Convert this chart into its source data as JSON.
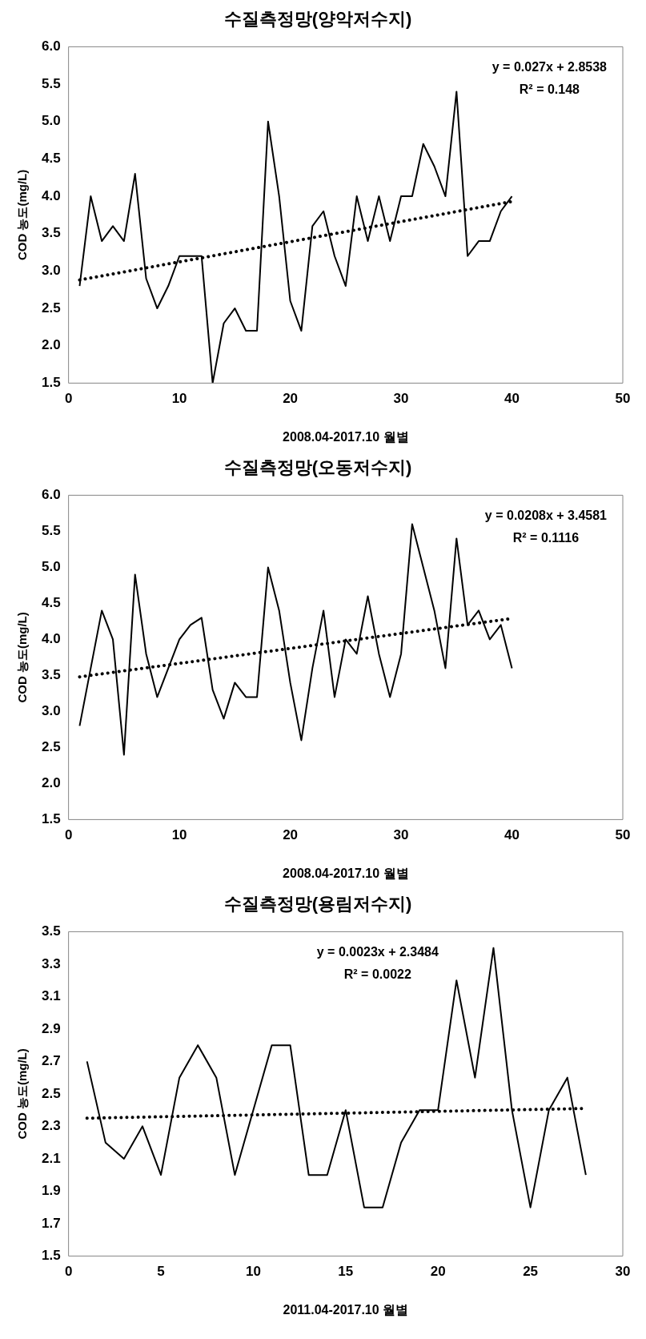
{
  "chart_data": [
    {
      "type": "line",
      "title": "수질측정망(양악저수지)",
      "xlabel": "2008.04-2017.10 월별",
      "ylabel": "COD 농도(mg/L)",
      "marker": "none",
      "x": [
        1,
        2,
        3,
        4,
        5,
        6,
        7,
        8,
        9,
        10,
        11,
        12,
        13,
        14,
        15,
        16,
        17,
        18,
        19,
        20,
        21,
        22,
        23,
        24,
        25,
        26,
        27,
        28,
        29,
        30,
        31,
        32,
        33,
        34,
        35,
        36,
        37,
        38,
        39,
        40
      ],
      "xlim": [
        0,
        50
      ],
      "xticks": [
        0,
        10,
        20,
        30,
        40,
        50
      ],
      "ylim": [
        1.5,
        6.0
      ],
      "yticks": [
        1.5,
        {
          "value": 2,
          "label": "2.0"
        },
        2.5,
        {
          "value": 3,
          "label": "3.0"
        },
        3.5,
        {
          "value": 4,
          "label": "4.0"
        },
        4.5,
        {
          "value": 5,
          "label": "5.0"
        },
        5.5,
        {
          "value": 6,
          "label": "6.0"
        }
      ],
      "series": [
        {
          "color": "#000000",
          "line_style": "solid",
          "values": [
            2.8,
            4.0,
            3.4,
            3.6,
            3.4,
            4.3,
            2.9,
            2.5,
            2.8,
            3.2,
            3.2,
            3.2,
            1.5,
            2.3,
            2.5,
            2.2,
            2.2,
            5.0,
            4.0,
            2.6,
            2.2,
            3.6,
            3.8,
            3.2,
            2.8,
            4.0,
            3.4,
            4.0,
            3.4,
            4.0,
            4.0,
            4.7,
            4.4,
            4.0,
            5.4,
            3.2,
            3.4,
            3.4,
            3.8,
            4.0
          ]
        },
        {
          "type": "line",
          "color": "#000000",
          "line_style": "dotted",
          "x": [
            1,
            40
          ],
          "values": [
            2.88,
            3.93
          ]
        }
      ],
      "annotations": [
        "y = 0.027x + 2.8538",
        "R² = 0.148"
      ]
    },
    {
      "type": "line",
      "title": "수질측정망(오동저수지)",
      "xlabel": "2008.04-2017.10 월별",
      "ylabel": "COD 농도(mg/L)",
      "marker": "none",
      "x": [
        1,
        2,
        3,
        4,
        5,
        6,
        7,
        8,
        9,
        10,
        11,
        12,
        13,
        14,
        15,
        16,
        17,
        18,
        19,
        20,
        21,
        22,
        23,
        24,
        25,
        26,
        27,
        28,
        29,
        30,
        31,
        32,
        33,
        34,
        35,
        36,
        37,
        38,
        39,
        40
      ],
      "xlim": [
        0,
        50
      ],
      "xticks": [
        0,
        10,
        20,
        30,
        40,
        50
      ],
      "ylim": [
        1.5,
        6.0
      ],
      "yticks": [
        1.5,
        {
          "value": 2,
          "label": "2.0"
        },
        2.5,
        {
          "value": 3,
          "label": "3.0"
        },
        3.5,
        {
          "value": 4,
          "label": "4.0"
        },
        4.5,
        {
          "value": 5,
          "label": "5.0"
        },
        5.5,
        {
          "value": 6,
          "label": "6.0"
        }
      ],
      "series": [
        {
          "color": "#000000",
          "line_style": "solid",
          "values": [
            2.8,
            3.6,
            4.4,
            4.0,
            2.4,
            4.9,
            3.8,
            3.2,
            3.6,
            4.0,
            4.2,
            4.3,
            3.3,
            2.9,
            3.4,
            3.2,
            3.2,
            5.0,
            4.4,
            3.4,
            2.6,
            3.6,
            4.4,
            3.2,
            4.0,
            3.8,
            4.6,
            3.8,
            3.2,
            3.8,
            5.6,
            5.0,
            4.4,
            3.6,
            5.4,
            4.2,
            4.4,
            4.0,
            4.2,
            3.6
          ]
        },
        {
          "type": "line",
          "color": "#000000",
          "line_style": "dotted",
          "x": [
            1,
            40
          ],
          "values": [
            3.48,
            4.29
          ]
        }
      ],
      "annotations": [
        "y = 0.0208x + 3.4581",
        "R² = 0.1116"
      ]
    },
    {
      "type": "line",
      "title": "수질측정망(용림저수지)",
      "xlabel": "2011.04-2017.10 월별",
      "ylabel": "COD 농도(mg/L)",
      "marker": "none",
      "x": [
        1,
        2,
        3,
        4,
        5,
        6,
        7,
        8,
        9,
        10,
        11,
        12,
        13,
        14,
        15,
        16,
        17,
        18,
        19,
        20,
        21,
        22,
        23,
        24,
        25,
        26,
        27,
        28
      ],
      "xlim": [
        0,
        30
      ],
      "xticks": [
        0,
        5,
        10,
        15,
        20,
        25,
        30
      ],
      "ylim": [
        1.5,
        3.5
      ],
      "yticks": [
        1.5,
        1.7,
        1.9,
        2.1,
        2.3,
        2.5,
        2.7,
        2.9,
        3.1,
        3.3,
        3.5
      ],
      "series": [
        {
          "color": "#000000",
          "line_style": "solid",
          "values": [
            2.7,
            2.2,
            2.1,
            2.3,
            2.0,
            2.6,
            2.8,
            2.6,
            2.0,
            2.4,
            2.8,
            2.8,
            2.0,
            2.0,
            2.4,
            1.8,
            1.8,
            2.2,
            2.4,
            2.4,
            3.2,
            2.6,
            3.4,
            2.4,
            1.8,
            2.4,
            2.6,
            2.0
          ]
        },
        {
          "type": "line",
          "color": "#000000",
          "line_style": "dotted",
          "x": [
            1,
            28
          ],
          "values": [
            2.35,
            2.41
          ]
        }
      ],
      "annotations": [
        "y = 0.0023x + 2.3484",
        "R² = 0.0022"
      ]
    }
  ]
}
